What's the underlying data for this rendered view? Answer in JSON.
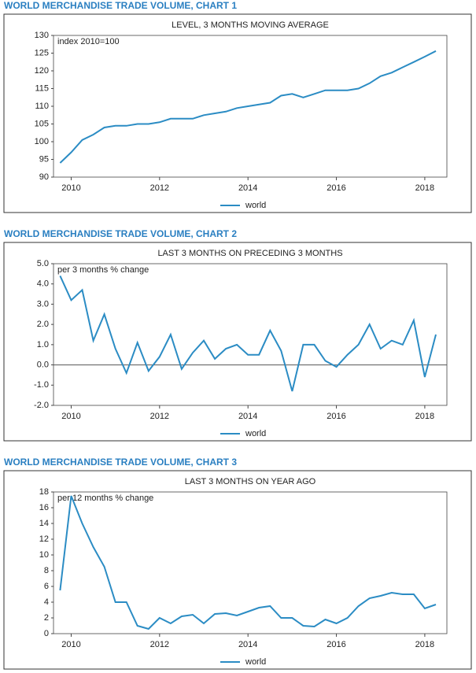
{
  "chart_data": [
    {
      "type": "line",
      "title": "WORLD MERCHANDISE TRADE VOLUME, CHART 1",
      "subtitle": "LEVEL, 3 MONTHS MOVING AVERAGE",
      "annotation": "index 2010=100",
      "x": [
        2009.75,
        2010,
        2010.25,
        2010.5,
        2010.75,
        2011,
        2011.25,
        2011.5,
        2011.75,
        2012,
        2012.25,
        2012.5,
        2012.75,
        2013,
        2013.25,
        2013.5,
        2013.75,
        2014,
        2014.25,
        2014.5,
        2014.75,
        2015,
        2015.25,
        2015.5,
        2015.75,
        2016,
        2016.25,
        2016.5,
        2016.75,
        2017,
        2017.25,
        2017.5,
        2017.75,
        2018,
        2018.25
      ],
      "series": [
        {
          "name": "world",
          "color": "#2b8cc4",
          "values": [
            94,
            97,
            100.5,
            102,
            104,
            104.5,
            104.5,
            105,
            105,
            105.5,
            106.5,
            106.5,
            106.5,
            107.5,
            108,
            108.5,
            109.5,
            110,
            110.5,
            111,
            113,
            113.5,
            112.5,
            113.5,
            114.5,
            114.5,
            114.5,
            115,
            116.5,
            118.5,
            119.5,
            121,
            122.5,
            124,
            125.6
          ]
        }
      ],
      "xlim": [
        2009.6,
        2018.5
      ],
      "ylim": [
        90,
        130
      ],
      "xticks": [
        2010,
        2012,
        2014,
        2016,
        2018
      ],
      "yticks": [
        90,
        95,
        100,
        105,
        110,
        115,
        120,
        125,
        130
      ]
    },
    {
      "type": "line",
      "title": "WORLD MERCHANDISE TRADE VOLUME, CHART 2",
      "subtitle": "LAST 3 MONTHS ON PRECEDING 3 MONTHS",
      "annotation": "per 3 months % change",
      "x": [
        2009.75,
        2010,
        2010.25,
        2010.5,
        2010.75,
        2011,
        2011.25,
        2011.5,
        2011.75,
        2012,
        2012.25,
        2012.5,
        2012.75,
        2013,
        2013.25,
        2013.5,
        2013.75,
        2014,
        2014.25,
        2014.5,
        2014.75,
        2015,
        2015.25,
        2015.5,
        2015.75,
        2016,
        2016.25,
        2016.5,
        2016.75,
        2017,
        2017.25,
        2017.5,
        2017.75,
        2018,
        2018.25
      ],
      "series": [
        {
          "name": "world",
          "color": "#2b8cc4",
          "values": [
            4.4,
            3.2,
            3.7,
            1.2,
            2.5,
            0.8,
            -0.4,
            1.1,
            -0.3,
            0.4,
            1.5,
            -0.2,
            0.6,
            1.2,
            0.3,
            0.8,
            1.0,
            0.5,
            0.5,
            1.7,
            0.7,
            -1.3,
            1.0,
            1.0,
            0.2,
            -0.1,
            0.5,
            1.0,
            2.0,
            0.8,
            1.2,
            1.0,
            2.2,
            -0.6,
            1.5
          ]
        }
      ],
      "xlim": [
        2009.6,
        2018.5
      ],
      "ylim": [
        -2,
        5
      ],
      "xticks": [
        2010,
        2012,
        2014,
        2016,
        2018
      ],
      "yticks": [
        {
          "value": -2,
          "label": "-2.0"
        },
        {
          "value": -1,
          "label": "-1.0"
        },
        {
          "value": 0,
          "label": "0.0"
        },
        {
          "value": 1,
          "label": "1.0"
        },
        {
          "value": 2,
          "label": "2.0"
        },
        {
          "value": 3,
          "label": "3.0"
        },
        {
          "value": 4,
          "label": "4.0"
        },
        {
          "value": 5,
          "label": "5.0"
        }
      ]
    },
    {
      "type": "line",
      "title": "WORLD MERCHANDISE TRADE VOLUME, CHART 3",
      "subtitle": "LAST 3 MONTHS ON YEAR AGO",
      "annotation": "per 12 months % change",
      "x": [
        2009.75,
        2010,
        2010.25,
        2010.5,
        2010.75,
        2011,
        2011.25,
        2011.5,
        2011.75,
        2012,
        2012.25,
        2012.5,
        2012.75,
        2013,
        2013.25,
        2013.5,
        2013.75,
        2014,
        2014.25,
        2014.5,
        2014.75,
        2015,
        2015.25,
        2015.5,
        2015.75,
        2016,
        2016.25,
        2016.5,
        2016.75,
        2017,
        2017.25,
        2017.5,
        2017.75,
        2018,
        2018.25
      ],
      "series": [
        {
          "name": "world",
          "color": "#2b8cc4",
          "values": [
            5.5,
            17.5,
            14,
            11,
            8.5,
            4,
            4,
            1,
            0.6,
            2,
            1.3,
            2.2,
            2.4,
            1.3,
            2.5,
            2.6,
            2.3,
            2.8,
            3.3,
            3.5,
            2,
            2,
            1,
            0.9,
            1.8,
            1.3,
            2,
            3.5,
            4.5,
            4.8,
            5.2,
            5,
            5,
            3.2,
            3.7
          ]
        }
      ],
      "xlim": [
        2009.6,
        2018.5
      ],
      "ylim": [
        0,
        18
      ],
      "xticks": [
        2010,
        2012,
        2014,
        2016,
        2018
      ],
      "yticks": [
        0,
        2,
        4,
        6,
        8,
        10,
        12,
        14,
        16,
        18
      ]
    }
  ]
}
